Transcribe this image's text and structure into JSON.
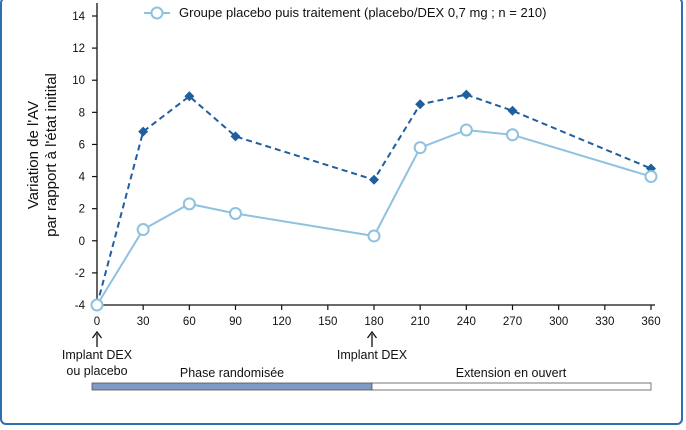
{
  "chart_data": {
    "type": "line",
    "ylabel_line1": "Variation de l'AV",
    "ylabel_line2": "par rapport à l'état initital",
    "x": [
      0,
      30,
      60,
      90,
      180,
      210,
      240,
      270,
      360
    ],
    "xticks": [
      0,
      30,
      60,
      90,
      120,
      150,
      180,
      210,
      240,
      270,
      300,
      330,
      360
    ],
    "yticks": [
      -4,
      -2,
      0,
      2,
      4,
      6,
      8,
      10,
      12,
      14
    ],
    "xlim": [
      0,
      360
    ],
    "ylim": [
      -4,
      14.5
    ],
    "grid": false,
    "series": [
      {
        "name": "",
        "style": "dashed",
        "marker": "diamond",
        "color": "#1f5f9e",
        "values": [
          -4,
          6.8,
          9.0,
          6.5,
          3.8,
          8.5,
          9.1,
          8.1,
          4.5
        ]
      },
      {
        "name": "Groupe placebo puis traitement (placebo/DEX 0,7 mg ; n = 210)",
        "style": "solid",
        "marker": "open-circle",
        "color": "#8fc1e0",
        "values": [
          -4,
          0.7,
          2.3,
          1.7,
          0.3,
          5.8,
          6.9,
          6.6,
          4.0
        ]
      }
    ],
    "legend_position": "top"
  },
  "annotations": {
    "implant1_line1": "Implant DEX",
    "implant1_line2": "ou placebo",
    "implant2": "Implant DEX"
  },
  "phases": {
    "randomized": "Phase randomisée",
    "extension": "Extension en ouvert",
    "randomized_color": "#7f9ac6",
    "extension_color": "#ffffff"
  }
}
